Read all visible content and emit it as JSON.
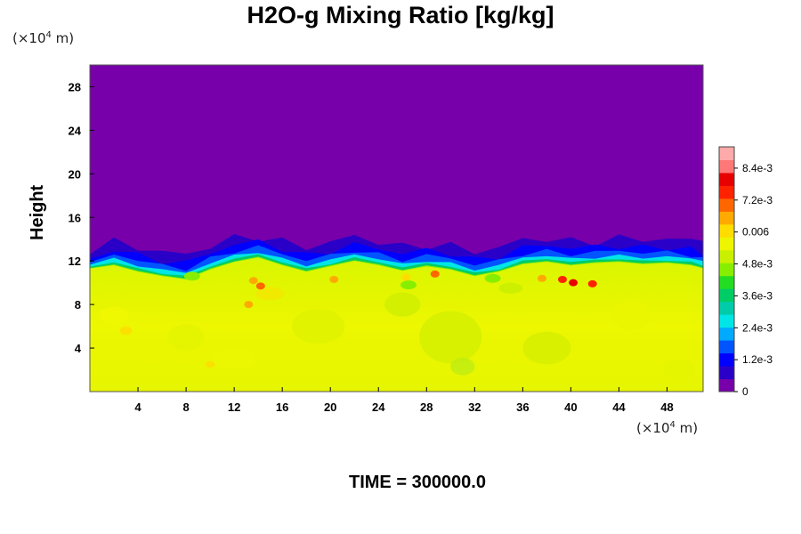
{
  "chart_data": {
    "type": "heatmap",
    "title": "H2O-g Mixing Ratio [kg/kg]",
    "ylabel": "Height",
    "xlabel": "",
    "x_unit_prefix": "(×10",
    "x_unit_exp": "4",
    "x_unit_suffix": " m)",
    "y_unit_prefix": "(×10",
    "y_unit_exp": "4",
    "y_unit_suffix": " m)",
    "xlim": [
      0,
      51
    ],
    "ylim": [
      0,
      30
    ],
    "x_ticks": [
      4,
      8,
      12,
      16,
      20,
      24,
      28,
      32,
      36,
      40,
      44,
      48
    ],
    "y_ticks": [
      4,
      8,
      12,
      16,
      20,
      24,
      28
    ],
    "colorbar": {
      "range": [
        0,
        0.0092
      ],
      "tick_values": [
        0,
        0.0012,
        0.0024,
        0.0036,
        0.0048,
        0.006,
        0.0072,
        0.0084
      ],
      "tick_labels": [
        "0",
        "1.2e-3",
        "2.4e-3",
        "3.6e-3",
        "4.8e-3",
        "0.006",
        "7.2e-3",
        "8.4e-3"
      ],
      "colors": [
        "#7700aa",
        "#2a00c8",
        "#0000ff",
        "#0055ff",
        "#00aaff",
        "#00e6e6",
        "#00ccaa",
        "#00cc66",
        "#22dd22",
        "#88ee00",
        "#c8f000",
        "#eef500",
        "#ffdd00",
        "#ffaa00",
        "#ff6600",
        "#ff2200",
        "#e60000",
        "#ff7777",
        "#ffaaaa"
      ]
    },
    "field": {
      "upper_region_value": 0,
      "lower_region_value_approx": 0.006,
      "interface_height_approx": 11,
      "interface_points_x": [
        0,
        2,
        4,
        6,
        8,
        10,
        12,
        14,
        16,
        18,
        20,
        22,
        24,
        26,
        28,
        30,
        32,
        34,
        36,
        38,
        40,
        42,
        44,
        46,
        48,
        50,
        51
      ],
      "interface_points_y": [
        11.3,
        11.6,
        11.0,
        10.6,
        10.3,
        11.2,
        11.9,
        12.3,
        11.6,
        11.0,
        11.5,
        12.0,
        11.6,
        11.1,
        11.5,
        11.2,
        10.6,
        11.0,
        11.7,
        11.9,
        11.6,
        11.8,
        11.9,
        11.7,
        11.8,
        11.6,
        11.3
      ]
    },
    "grid": false,
    "legend": "colorbar right"
  },
  "footer": {
    "time_label": "TIME = 300000.0"
  }
}
